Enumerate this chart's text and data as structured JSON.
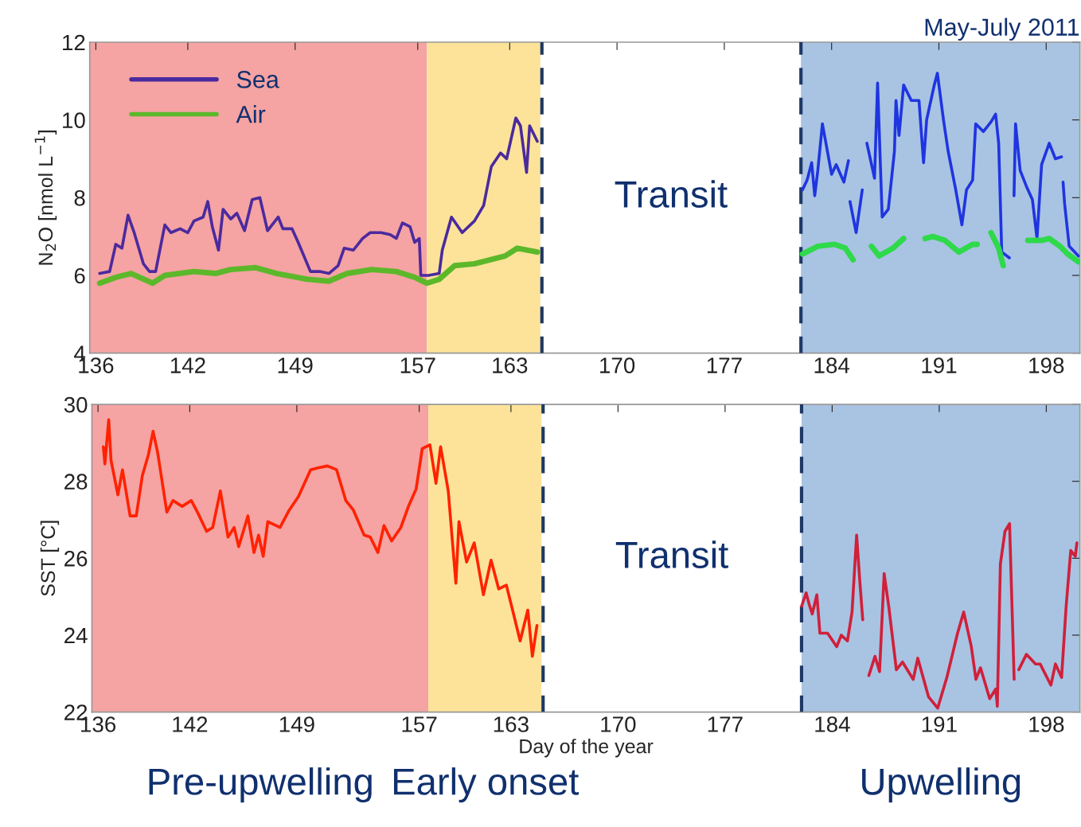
{
  "chart_data": [
    {
      "type": "line",
      "title": "May-July 2011",
      "ylabel": "N$_{2}$O [nmol L$^{−1}$]",
      "xlim": [
        135.6,
        200.2
      ],
      "ylim": [
        4,
        12
      ],
      "xticks": [
        136,
        142,
        149,
        157,
        163,
        170,
        177,
        184,
        191,
        198
      ],
      "yticks": [
        4,
        6,
        8,
        10,
        12
      ],
      "legend": "top left",
      "grid": false,
      "marker": "none",
      "line_style": "solid",
      "bands": [
        {
          "axis": "x",
          "from": 135.6,
          "to": 157.6,
          "color": "#f5a3a3"
        },
        {
          "axis": "x",
          "from": 157.6,
          "to": 165.0,
          "color": "#fde39a"
        },
        {
          "axis": "x",
          "from": 182.0,
          "to": 200.2,
          "color": "#a9c3e3"
        }
      ],
      "ref_lines": [
        {
          "axis": "x",
          "value": 165.1,
          "color": "#1f3864",
          "line_style": "dashed"
        },
        {
          "axis": "x",
          "value": 182.0,
          "color": "#1f3864",
          "line_style": "dashed"
        }
      ],
      "annotations": [
        "Transit"
      ],
      "series": [
        {
          "name": "Sea",
          "color": "#4b2a9e",
          "x": [
            136.25,
            136.9,
            137.3,
            137.7,
            138.1,
            138.5,
            139.1,
            139.5,
            139.9,
            140.5,
            140.9,
            141.5,
            142.0,
            142.4,
            143.0,
            143.3,
            143.6,
            144.0,
            144.3,
            144.8,
            145.2,
            145.7,
            146.2,
            146.7,
            147.2,
            147.9,
            148.2,
            148.8,
            149.2,
            150.0,
            150.6,
            151.2,
            151.8,
            152.2,
            152.8,
            153.4,
            153.9,
            154.6,
            155.2,
            155.6,
            156.0,
            156.5,
            156.8,
            157.1,
            157.2,
            157.7,
            158.4,
            158.6,
            159.2,
            159.9,
            160.7,
            161.3,
            161.8,
            162.4,
            162.8,
            163.4,
            163.7,
            164.1,
            164.3,
            164.8
          ],
          "values": [
            6.05,
            6.1,
            6.8,
            6.7,
            7.55,
            7.1,
            6.3,
            6.1,
            6.1,
            7.3,
            7.1,
            7.2,
            7.1,
            7.4,
            7.5,
            7.9,
            7.25,
            6.65,
            7.7,
            7.45,
            7.6,
            7.15,
            7.95,
            8.0,
            7.15,
            7.5,
            7.2,
            7.2,
            6.85,
            6.1,
            6.1,
            6.05,
            6.25,
            6.7,
            6.65,
            6.95,
            7.1,
            7.1,
            7.05,
            6.95,
            7.35,
            7.25,
            6.85,
            6.95,
            6.0,
            6.0,
            6.05,
            6.65,
            7.5,
            7.1,
            7.4,
            7.8,
            8.8,
            9.15,
            9.0,
            10.05,
            9.85,
            8.65,
            9.85,
            9.45
          ]
        },
        {
          "name": "Air",
          "color": "#5cb82a",
          "x": [
            136.25,
            137.3,
            138.3,
            139.7,
            140.5,
            142.4,
            143.8,
            144.8,
            146.4,
            147.8,
            149.8,
            151.2,
            152.4,
            154.0,
            155.6,
            156.8,
            157.6,
            158.4,
            159.4,
            160.7,
            162.7,
            163.5,
            164.8
          ],
          "values": [
            5.8,
            5.95,
            6.05,
            5.8,
            6.0,
            6.1,
            6.05,
            6.15,
            6.2,
            6.05,
            5.9,
            5.85,
            6.05,
            6.15,
            6.1,
            5.95,
            5.8,
            5.9,
            6.25,
            6.3,
            6.5,
            6.7,
            6.6
          ]
        },
        {
          "color": "#1f35e0",
          "x": [
            182.1,
            182.4,
            182.7,
            182.9,
            183.1,
            183.4,
            183.7,
            184.0,
            184.3,
            184.8,
            185.1,
            185.15,
            185.2,
            185.6,
            186.0,
            186.15,
            186.3,
            186.8,
            187.0,
            187.3,
            187.7,
            188.1,
            188.2,
            188.4,
            188.7,
            189.2,
            189.7,
            190.0,
            190.2,
            190.7,
            190.9,
            191.3,
            191.6,
            192.1,
            192.5,
            192.8,
            193.2,
            193.4,
            193.9,
            194.4,
            194.7,
            194.9,
            195.1,
            195.6,
            195.75,
            195.9,
            196.0,
            196.3,
            196.7,
            197.1,
            197.4,
            197.7,
            198.2,
            198.6,
            199.0,
            199.05,
            199.1,
            199.2,
            199.5,
            200.1
          ],
          "values": [
            8.2,
            8.45,
            8.9,
            8.05,
            8.7,
            9.9,
            9.25,
            8.6,
            8.85,
            8.4,
            8.95,
            null,
            7.9,
            7.1,
            8.2,
            null,
            9.4,
            8.5,
            10.95,
            7.5,
            7.7,
            9.2,
            10.5,
            9.6,
            10.9,
            10.5,
            10.5,
            8.9,
            10.0,
            10.9,
            11.2,
            10.0,
            9.2,
            8.2,
            7.3,
            8.2,
            8.45,
            9.9,
            9.7,
            9.95,
            10.15,
            9.4,
            6.6,
            6.45,
            null,
            8.05,
            9.9,
            8.7,
            8.3,
            7.95,
            6.95,
            8.85,
            9.4,
            9.0,
            9.05,
            null,
            8.4,
            7.85,
            6.75,
            6.5
          ]
        },
        {
          "color": "#2ed94a",
          "x": [
            182.1,
            183.1,
            184.2,
            184.9,
            185.4,
            186.0,
            186.6,
            187.1,
            188.0,
            188.7,
            189.4,
            190.1,
            190.6,
            191.4,
            192.3,
            193.2,
            193.5,
            194.0,
            194.4,
            194.9,
            195.2,
            196.0,
            196.8,
            197.7,
            198.2,
            198.9,
            199.4,
            200.1
          ],
          "values": [
            6.55,
            6.75,
            6.8,
            6.7,
            6.4,
            null,
            6.75,
            6.5,
            6.7,
            6.95,
            null,
            6.95,
            7.0,
            6.9,
            6.6,
            6.8,
            6.8,
            null,
            7.1,
            6.7,
            6.25,
            null,
            6.9,
            6.9,
            6.95,
            6.75,
            6.55,
            6.35
          ]
        }
      ]
    },
    {
      "type": "line",
      "xlabel": "Day of the year",
      "ylabel": "SST [°C]",
      "xlim": [
        135.6,
        200.2
      ],
      "ylim": [
        22,
        30
      ],
      "xticks": [
        136,
        142,
        149,
        157,
        163,
        170,
        177,
        184,
        191,
        198
      ],
      "yticks": [
        22,
        24,
        26,
        28,
        30
      ],
      "grid": false,
      "marker": "none",
      "line_style": "solid",
      "bands": [
        {
          "axis": "x",
          "from": 135.6,
          "to": 157.6,
          "color": "#f5a3a3",
          "label": "Pre-upwelling"
        },
        {
          "axis": "x",
          "from": 157.6,
          "to": 165.0,
          "color": "#fde39a",
          "label": "Early onset"
        },
        {
          "axis": "x",
          "from": 182.0,
          "to": 200.2,
          "color": "#a9c3e3",
          "label": "Upwelling"
        }
      ],
      "ref_lines": [
        {
          "axis": "x",
          "value": 165.1,
          "color": "#1f3864",
          "line_style": "dashed"
        },
        {
          "axis": "x",
          "value": 182.0,
          "color": "#1f3864",
          "line_style": "dashed"
        }
      ],
      "annotations": [
        "Transit"
      ],
      "series": [
        {
          "color": "#ff2200",
          "x": [
            136.35,
            136.45,
            136.7,
            136.85,
            137.3,
            137.6,
            138.1,
            138.5,
            138.9,
            139.3,
            139.6,
            139.9,
            140.5,
            140.9,
            141.5,
            142.1,
            142.5,
            143.1,
            143.5,
            144.0,
            144.5,
            144.9,
            145.2,
            145.8,
            146.2,
            146.5,
            146.8,
            147.1,
            147.9,
            148.5,
            149.1,
            149.9,
            150.4,
            151.0,
            151.6,
            152.2,
            152.7,
            153.4,
            153.8,
            154.3,
            154.7,
            155.2,
            155.8,
            156.3,
            156.8,
            157.2,
            157.7,
            158.1,
            158.4,
            158.9,
            159.2,
            159.4,
            159.6,
            160.1,
            160.6,
            161.2,
            161.7,
            162.2,
            162.7,
            163.2,
            163.6,
            164.1,
            164.4,
            164.7
          ],
          "values": [
            28.9,
            28.45,
            29.6,
            28.55,
            27.65,
            28.3,
            27.1,
            27.1,
            28.15,
            28.7,
            29.3,
            28.75,
            27.2,
            27.5,
            27.35,
            27.5,
            27.2,
            26.7,
            26.8,
            27.75,
            26.55,
            26.8,
            26.3,
            27.1,
            26.15,
            26.6,
            26.05,
            26.95,
            26.8,
            27.25,
            27.6,
            28.3,
            28.35,
            28.4,
            28.3,
            27.5,
            27.25,
            26.6,
            26.55,
            26.15,
            26.85,
            26.45,
            26.8,
            27.35,
            27.8,
            28.85,
            28.95,
            27.95,
            28.9,
            27.75,
            26.3,
            25.35,
            26.95,
            25.9,
            26.4,
            25.05,
            25.95,
            25.2,
            25.3,
            24.5,
            23.85,
            24.65,
            23.45,
            24.25
          ]
        },
        {
          "color": "#d0203a",
          "x": [
            182.0,
            182.3,
            182.5,
            182.7,
            183.0,
            183.2,
            183.7,
            184.3,
            184.6,
            185.0,
            185.3,
            185.6,
            185.8,
            186.0,
            186.2,
            186.4,
            186.8,
            187.1,
            187.4,
            187.7,
            188.2,
            188.6,
            189.3,
            189.6,
            190.3,
            190.9,
            191.5,
            192.2,
            192.6,
            193.1,
            193.4,
            193.7,
            194.3,
            194.7,
            194.8,
            195.0,
            195.3,
            195.6,
            195.9,
            196.05,
            196.2,
            196.7,
            197.3,
            197.6,
            198.3,
            198.6,
            199.0,
            199.3,
            199.6,
            199.9,
            200.0
          ],
          "values": [
            24.75,
            25.1,
            24.8,
            24.55,
            25.05,
            24.05,
            24.05,
            23.7,
            24.0,
            23.85,
            24.6,
            26.6,
            25.45,
            24.4,
            null,
            22.95,
            23.45,
            23.05,
            25.6,
            24.75,
            23.1,
            23.3,
            22.85,
            23.4,
            22.4,
            22.1,
            22.9,
            24.05,
            24.6,
            23.7,
            22.85,
            23.15,
            22.35,
            22.6,
            22.15,
            25.85,
            26.7,
            26.9,
            22.85,
            null,
            23.1,
            23.5,
            23.25,
            23.25,
            22.7,
            23.25,
            22.9,
            24.75,
            26.2,
            26.05,
            26.4
          ]
        }
      ]
    }
  ]
}
